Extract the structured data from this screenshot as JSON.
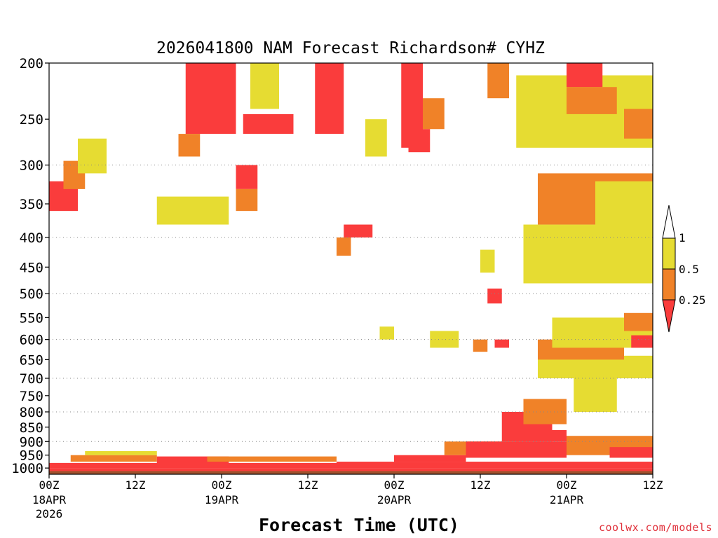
{
  "chart_data": {
    "type": "heatmap",
    "title": "2026041800 NAM Forecast Richardson# CYHZ",
    "xlabel": "Forecast Time (UTC)",
    "ylabel": "",
    "x_ticks": [
      {
        "hour": 0,
        "label": "00Z",
        "date": "18APR",
        "year": "2026"
      },
      {
        "hour": 12,
        "label": "12Z",
        "date": "",
        "year": ""
      },
      {
        "hour": 24,
        "label": "00Z",
        "date": "19APR",
        "year": ""
      },
      {
        "hour": 36,
        "label": "12Z",
        "date": "",
        "year": ""
      },
      {
        "hour": 48,
        "label": "00Z",
        "date": "20APR",
        "year": ""
      },
      {
        "hour": 60,
        "label": "12Z",
        "date": "",
        "year": ""
      },
      {
        "hour": 72,
        "label": "00Z",
        "date": "21APR",
        "year": ""
      },
      {
        "hour": 84,
        "label": "12Z",
        "date": "",
        "year": ""
      }
    ],
    "xlim": [
      0,
      84
    ],
    "y_ticks": [
      200,
      250,
      300,
      350,
      400,
      450,
      500,
      550,
      600,
      650,
      700,
      750,
      800,
      850,
      900,
      950,
      1000
    ],
    "ylim": [
      1025,
      200
    ],
    "y_units": "hPa",
    "grid_levels": [
      300,
      400,
      500,
      600,
      700,
      800,
      900
    ],
    "legend_position": "right",
    "colorbar": {
      "labels": [
        "1",
        "0.5",
        "0.25"
      ],
      "bins": [
        {
          "range": ">1",
          "color": "#ffffff"
        },
        {
          "range": "0.5-1",
          "color": "#e6dc32"
        },
        {
          "range": "0.25-0.5",
          "color": "#f08228"
        },
        {
          "range": "<0.25",
          "color": "#fa3c3c"
        }
      ]
    },
    "colors": {
      "yellow": "#e6dc32",
      "orange": "#f08228",
      "red": "#fa3c3c",
      "ground": "#a0522d"
    },
    "regions": [
      {
        "bin": "red",
        "t": [
          0,
          84
        ],
        "p": [
          1000,
          1025
        ]
      },
      {
        "bin": "red",
        "t": [
          0,
          40
        ],
        "p": [
          980,
          1000
        ]
      },
      {
        "bin": "red",
        "t": [
          40,
          84
        ],
        "p": [
          975,
          1000
        ]
      },
      {
        "bin": "orange",
        "t": [
          3,
          15
        ],
        "p": [
          950,
          975
        ]
      },
      {
        "bin": "yellow",
        "t": [
          5,
          15
        ],
        "p": [
          935,
          950
        ]
      },
      {
        "bin": "red",
        "t": [
          15,
          25
        ],
        "p": [
          955,
          985
        ]
      },
      {
        "bin": "orange",
        "t": [
          22,
          40
        ],
        "p": [
          955,
          975
        ]
      },
      {
        "bin": "red",
        "t": [
          48,
          58
        ],
        "p": [
          950,
          975
        ]
      },
      {
        "bin": "orange",
        "t": [
          55,
          65
        ],
        "p": [
          900,
          950
        ]
      },
      {
        "bin": "red",
        "t": [
          58,
          72
        ],
        "p": [
          900,
          960
        ]
      },
      {
        "bin": "red",
        "t": [
          63,
          70
        ],
        "p": [
          800,
          900
        ]
      },
      {
        "bin": "orange",
        "t": [
          66,
          72
        ],
        "p": [
          760,
          840
        ]
      },
      {
        "bin": "red",
        "t": [
          65,
          72
        ],
        "p": [
          860,
          900
        ]
      },
      {
        "bin": "orange",
        "t": [
          72,
          84
        ],
        "p": [
          880,
          950
        ]
      },
      {
        "bin": "red",
        "t": [
          78,
          84
        ],
        "p": [
          920,
          960
        ]
      },
      {
        "bin": "yellow",
        "t": [
          68,
          84
        ],
        "p": [
          640,
          700
        ]
      },
      {
        "bin": "orange",
        "t": [
          68,
          80
        ],
        "p": [
          600,
          650
        ]
      },
      {
        "bin": "yellow",
        "t": [
          70,
          84
        ],
        "p": [
          550,
          620
        ]
      },
      {
        "bin": "orange",
        "t": [
          80,
          84
        ],
        "p": [
          540,
          580
        ]
      },
      {
        "bin": "red",
        "t": [
          81,
          84
        ],
        "p": [
          590,
          620
        ]
      },
      {
        "bin": "yellow",
        "t": [
          73,
          79
        ],
        "p": [
          700,
          800
        ]
      },
      {
        "bin": "yellow",
        "t": [
          66,
          84
        ],
        "p": [
          380,
          480
        ]
      },
      {
        "bin": "orange",
        "t": [
          68,
          84
        ],
        "p": [
          310,
          380
        ]
      },
      {
        "bin": "yellow",
        "t": [
          76,
          84
        ],
        "p": [
          320,
          400
        ]
      },
      {
        "bin": "red",
        "t": [
          0,
          4
        ],
        "p": [
          320,
          360
        ]
      },
      {
        "bin": "orange",
        "t": [
          2,
          5
        ],
        "p": [
          295,
          330
        ]
      },
      {
        "bin": "yellow",
        "t": [
          4,
          8
        ],
        "p": [
          270,
          310
        ]
      },
      {
        "bin": "red",
        "t": [
          19,
          26
        ],
        "p": [
          200,
          265
        ]
      },
      {
        "bin": "orange",
        "t": [
          18,
          21
        ],
        "p": [
          265,
          290
        ]
      },
      {
        "bin": "red",
        "t": [
          27,
          34
        ],
        "p": [
          245,
          265
        ]
      },
      {
        "bin": "red",
        "t": [
          26,
          29
        ],
        "p": [
          300,
          330
        ]
      },
      {
        "bin": "orange",
        "t": [
          26,
          29
        ],
        "p": [
          330,
          360
        ]
      },
      {
        "bin": "red",
        "t": [
          37,
          41
        ],
        "p": [
          200,
          265
        ]
      },
      {
        "bin": "red",
        "t": [
          41,
          45
        ],
        "p": [
          380,
          400
        ]
      },
      {
        "bin": "orange",
        "t": [
          40,
          42
        ],
        "p": [
          400,
          430
        ]
      },
      {
        "bin": "red",
        "t": [
          49,
          52
        ],
        "p": [
          200,
          280
        ]
      },
      {
        "bin": "orange",
        "t": [
          52,
          55
        ],
        "p": [
          230,
          260
        ]
      },
      {
        "bin": "red",
        "t": [
          50,
          53
        ],
        "p": [
          260,
          285
        ]
      },
      {
        "bin": "orange",
        "t": [
          61,
          64
        ],
        "p": [
          200,
          230
        ]
      },
      {
        "bin": "yellow",
        "t": [
          65,
          84
        ],
        "p": [
          210,
          280
        ]
      },
      {
        "bin": "red",
        "t": [
          72,
          77
        ],
        "p": [
          200,
          220
        ]
      },
      {
        "bin": "orange",
        "t": [
          72,
          79
        ],
        "p": [
          220,
          245
        ]
      },
      {
        "bin": "orange",
        "t": [
          80,
          84
        ],
        "p": [
          240,
          270
        ]
      },
      {
        "bin": "yellow",
        "t": [
          15,
          25
        ],
        "p": [
          340,
          380
        ]
      },
      {
        "bin": "yellow",
        "t": [
          28,
          32
        ],
        "p": [
          200,
          240
        ]
      },
      {
        "bin": "yellow",
        "t": [
          44,
          47
        ],
        "p": [
          250,
          290
        ]
      },
      {
        "bin": "yellow",
        "t": [
          46,
          48
        ],
        "p": [
          570,
          600
        ]
      },
      {
        "bin": "yellow",
        "t": [
          53,
          57
        ],
        "p": [
          580,
          620
        ]
      },
      {
        "bin": "yellow",
        "t": [
          60,
          62
        ],
        "p": [
          420,
          460
        ]
      },
      {
        "bin": "red",
        "t": [
          61,
          63
        ],
        "p": [
          490,
          520
        ]
      },
      {
        "bin": "orange",
        "t": [
          59,
          61
        ],
        "p": [
          600,
          630
        ]
      },
      {
        "bin": "red",
        "t": [
          62,
          64
        ],
        "p": [
          600,
          620
        ]
      }
    ]
  },
  "credit": "coolwx.com/models"
}
